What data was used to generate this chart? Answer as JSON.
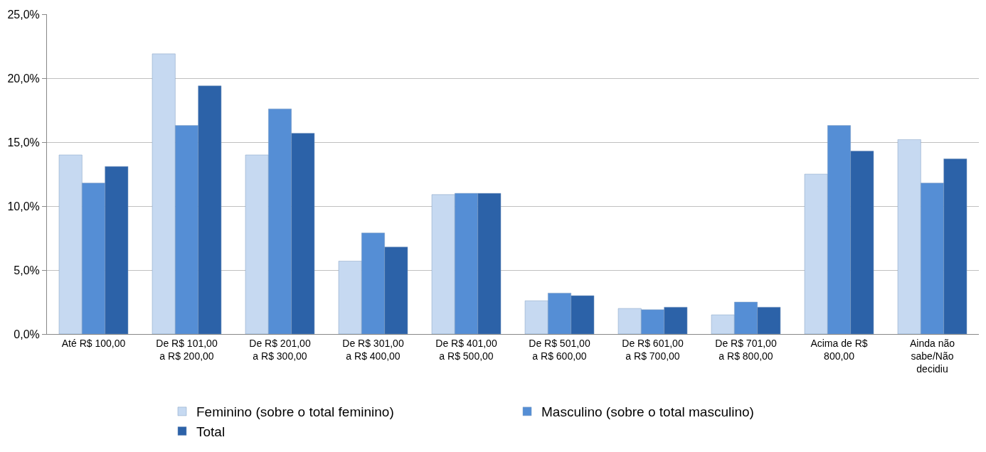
{
  "chart_data": {
    "type": "bar",
    "categories": [
      "Até R$ 100,00",
      "De R$ 101,00 a R$ 200,00",
      "De R$ 201,00 a R$ 300,00",
      "De R$ 301,00 a R$ 400,00",
      "De R$ 401,00 a R$ 500,00",
      "De R$ 501,00 a R$ 600,00",
      "De R$ 601,00 a R$ 700,00",
      "De R$ 701,00 a R$ 800,00",
      "Acima de R$ 800,00",
      "Ainda não sabe/Não decidiu"
    ],
    "series": [
      {
        "name": "Feminino (sobre o total feminino)",
        "color": "#c6d9f1",
        "values": [
          14.0,
          21.9,
          14.0,
          5.7,
          10.9,
          2.6,
          2.0,
          1.5,
          12.5,
          15.2
        ]
      },
      {
        "name": "Masculino (sobre o total masculino)",
        "color": "#558ed5",
        "values": [
          11.8,
          16.3,
          17.6,
          7.9,
          11.0,
          3.2,
          1.9,
          2.5,
          16.3,
          11.8
        ]
      },
      {
        "name": "Total",
        "color": "#2c62a8",
        "values": [
          13.1,
          19.4,
          15.7,
          6.8,
          11.0,
          3.0,
          2.1,
          2.1,
          14.3,
          13.7
        ]
      }
    ],
    "ylim": [
      0,
      25
    ],
    "yticks": [
      {
        "value": 0,
        "label": "0,0%"
      },
      {
        "value": 5,
        "label": "5,0%"
      },
      {
        "value": 10,
        "label": "10,0%"
      },
      {
        "value": 15,
        "label": "15,0%"
      },
      {
        "value": 20,
        "label": "20,0%"
      },
      {
        "value": 25,
        "label": "25,0%"
      }
    ],
    "grid": "y",
    "legend": "bottom"
  }
}
